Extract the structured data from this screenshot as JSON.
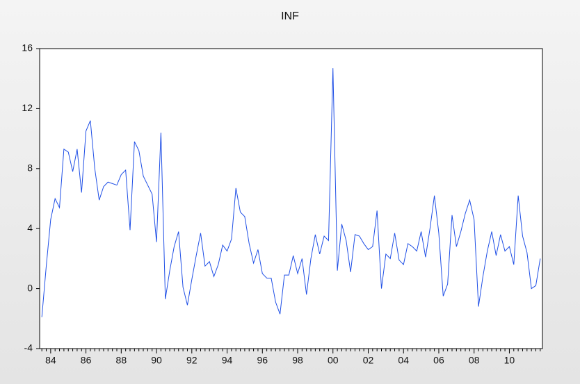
{
  "chart_data": {
    "type": "line",
    "title": "INF",
    "categories": [
      null,
      null,
      "84",
      null,
      null,
      null,
      null,
      null,
      null,
      null,
      "86",
      null,
      null,
      null,
      null,
      null,
      null,
      null,
      "88",
      null,
      null,
      null,
      null,
      null,
      null,
      null,
      "90",
      null,
      null,
      null,
      null,
      null,
      null,
      null,
      "92",
      null,
      null,
      null,
      null,
      null,
      null,
      null,
      "94",
      null,
      null,
      null,
      null,
      null,
      null,
      null,
      "96",
      null,
      null,
      null,
      null,
      null,
      null,
      null,
      "98",
      null,
      null,
      null,
      null,
      null,
      null,
      null,
      "00",
      null,
      null,
      null,
      null,
      null,
      null,
      null,
      "02",
      null,
      null,
      null,
      null,
      null,
      null,
      null,
      "04",
      null,
      null,
      null,
      null,
      null,
      null,
      null,
      "06",
      null,
      null,
      null,
      null,
      null,
      null,
      null,
      "08",
      null,
      null,
      null,
      null,
      null,
      null,
      null,
      "10",
      null,
      null,
      null,
      null,
      null,
      null,
      null
    ],
    "values": [
      -1.9,
      1.5,
      4.6,
      6.0,
      5.4,
      9.3,
      9.1,
      7.8,
      9.3,
      6.4,
      10.5,
      11.2,
      8.0,
      5.9,
      6.8,
      7.1,
      7.0,
      6.9,
      7.6,
      7.9,
      3.9,
      9.8,
      9.2,
      7.5,
      6.9,
      6.3,
      3.1,
      10.4,
      -0.7,
      1.2,
      2.8,
      3.8,
      0.1,
      -1.1,
      0.6,
      2.2,
      3.7,
      1.5,
      1.8,
      0.8,
      1.6,
      2.9,
      2.5,
      3.3,
      6.7,
      5.1,
      4.8,
      3.0,
      1.7,
      2.6,
      1.0,
      0.7,
      0.7,
      -0.9,
      -1.7,
      0.9,
      0.9,
      2.2,
      1.0,
      2.0,
      -0.4,
      2.0,
      3.6,
      2.3,
      3.5,
      3.2,
      14.7,
      1.2,
      4.3,
      3.2,
      1.1,
      3.6,
      3.5,
      3.0,
      2.6,
      2.8,
      5.2,
      0.0,
      2.3,
      2.0,
      3.7,
      1.9,
      1.6,
      3.0,
      2.8,
      2.5,
      3.8,
      2.1,
      4.0,
      6.2,
      3.7,
      -0.5,
      0.3,
      4.9,
      2.8,
      3.8,
      5.0,
      5.9,
      4.6,
      -1.2,
      0.8,
      2.5,
      3.8,
      2.2,
      3.6,
      2.5,
      2.8,
      1.6,
      6.2,
      3.5,
      2.4,
      0.0,
      0.2,
      2.0
    ],
    "color": "#1f4fe6",
    "ylim": [
      -4,
      16
    ],
    "yticks": [
      -4,
      0,
      4,
      8,
      12,
      16
    ]
  }
}
